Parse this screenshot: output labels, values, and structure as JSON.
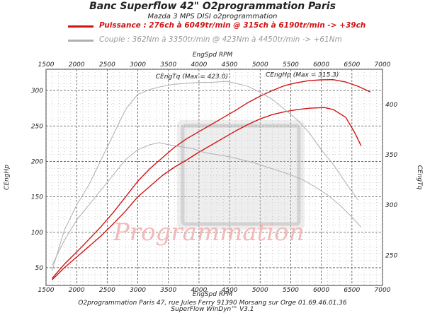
{
  "header": {
    "title": "Banc Superflow 42\" O2programmation Paris",
    "subtitle": "Mazda 3 MPS DISI o2programmation"
  },
  "legend": {
    "power": "Puissance : 276ch à 6049tr/min @ 315ch à 6190tr/min  -> +39ch",
    "torque": "Couple :  362Nm à 3350tr/min @ 423Nm à 4450tr/min  -> +61Nm"
  },
  "footer": {
    "line1": "O2programmation Paris 47, rue Jules Ferry 91390 Morsang sur Orge 01.69.46.01.36",
    "line2": "SuperFlow WinDyn™ V3.1"
  },
  "watermark": "Programmation",
  "colors": {
    "power_tuned": "#d01414",
    "power_stock": "#d01414",
    "torque": "#b0b0b0",
    "grid": "#555555"
  },
  "chart_data": {
    "type": "line",
    "x_axis": {
      "label": "EngSpd RPM",
      "range": [
        1500,
        7000
      ],
      "ticks": [
        1500,
        2000,
        2500,
        3000,
        3500,
        4000,
        4500,
        5000,
        5500,
        6000,
        6500,
        7000
      ]
    },
    "y_left": {
      "label": "CEngHp",
      "range": [
        25,
        330
      ],
      "ticks": [
        50,
        100,
        150,
        200,
        250,
        300
      ]
    },
    "y_right": {
      "label": "CEngTq",
      "range": [
        220,
        435
      ],
      "ticks": [
        250,
        300,
        350,
        400
      ]
    },
    "grid": true,
    "annotations": [
      {
        "text": "CEngHp (Max = 315.3)",
        "series": "power_tuned"
      },
      {
        "text": "CEngTq (Max = 423.0)",
        "series": "torque_tuned"
      }
    ],
    "series": [
      {
        "id": "power_tuned",
        "axis": "left",
        "color": "#d01414",
        "x": [
          1600,
          1800,
          2000,
          2200,
          2400,
          2600,
          2800,
          3000,
          3200,
          3400,
          3600,
          3800,
          4000,
          4200,
          4400,
          4600,
          4800,
          5000,
          5200,
          5400,
          5600,
          5800,
          6000,
          6190,
          6400,
          6600,
          6800
        ],
        "y": [
          35,
          55,
          72,
          90,
          108,
          128,
          150,
          172,
          190,
          205,
          220,
          232,
          242,
          252,
          262,
          272,
          283,
          292,
          300,
          307,
          311,
          314,
          315,
          315.3,
          312,
          306,
          298
        ]
      },
      {
        "id": "power_stock",
        "axis": "left",
        "color": "#d01414",
        "x": [
          1600,
          1800,
          2000,
          2200,
          2400,
          2600,
          2800,
          3000,
          3200,
          3400,
          3600,
          3800,
          4000,
          4200,
          4400,
          4600,
          4800,
          5000,
          5200,
          5400,
          5600,
          5800,
          6049,
          6200,
          6400,
          6550,
          6650
        ],
        "y": [
          33,
          50,
          65,
          80,
          95,
          112,
          130,
          150,
          165,
          180,
          192,
          202,
          213,
          223,
          233,
          243,
          252,
          260,
          266,
          270,
          273,
          275,
          276,
          273,
          262,
          240,
          222
        ]
      },
      {
        "id": "torque_tuned",
        "axis": "right",
        "color": "#b0b0b0",
        "x": [
          1600,
          1800,
          2000,
          2200,
          2400,
          2600,
          2800,
          3000,
          3200,
          3400,
          3600,
          3800,
          4000,
          4200,
          4450,
          4600,
          4800,
          5000,
          5200,
          5400,
          5600,
          5800,
          6000,
          6200,
          6400,
          6600
        ],
        "y": [
          235,
          275,
          300,
          320,
          345,
          370,
          395,
          410,
          415,
          418,
          420,
          421,
          422,
          422,
          423,
          421,
          418,
          412,
          405,
          395,
          385,
          372,
          355,
          340,
          322,
          305
        ]
      },
      {
        "id": "torque_stock",
        "axis": "right",
        "color": "#b0b0b0",
        "x": [
          1600,
          1800,
          2000,
          2200,
          2400,
          2600,
          2800,
          3000,
          3200,
          3350,
          3500,
          3700,
          3900,
          4100,
          4300,
          4500,
          4700,
          4900,
          5100,
          5300,
          5500,
          5700,
          5900,
          6100,
          6300,
          6500,
          6650
        ],
        "y": [
          240,
          265,
          285,
          300,
          315,
          330,
          345,
          355,
          360,
          362,
          360,
          358,
          356,
          352,
          350,
          348,
          345,
          342,
          338,
          334,
          330,
          325,
          318,
          310,
          300,
          288,
          278
        ]
      }
    ]
  }
}
